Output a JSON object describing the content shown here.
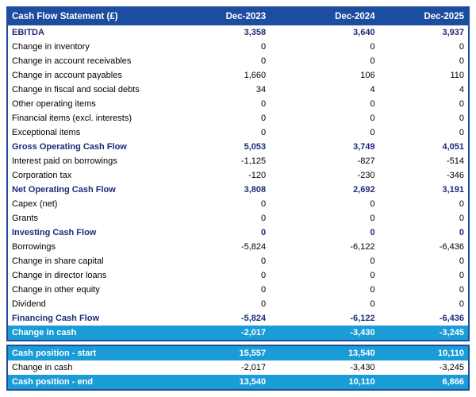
{
  "chart_data": {
    "type": "table",
    "title": "Cash Flow Statement (£)",
    "columns": [
      "Dec-2023",
      "Dec-2024",
      "Dec-2025"
    ],
    "rows": [
      {
        "label": "EBITDA",
        "values": [
          "3,358",
          "3,640",
          "3,937"
        ],
        "style": "section"
      },
      {
        "label": "Change in inventory",
        "values": [
          "0",
          "0",
          "0"
        ],
        "style": "normal"
      },
      {
        "label": "Change in account receivables",
        "values": [
          "0",
          "0",
          "0"
        ],
        "style": "normal"
      },
      {
        "label": "Change in account payables",
        "values": [
          "1,660",
          "106",
          "110"
        ],
        "style": "normal"
      },
      {
        "label": "Change in fiscal and social debts",
        "values": [
          "34",
          "4",
          "4"
        ],
        "style": "normal"
      },
      {
        "label": "Other operating items",
        "values": [
          "0",
          "0",
          "0"
        ],
        "style": "normal"
      },
      {
        "label": "Financial items (excl. interests)",
        "values": [
          "0",
          "0",
          "0"
        ],
        "style": "normal"
      },
      {
        "label": "Exceptional items",
        "values": [
          "0",
          "0",
          "0"
        ],
        "style": "normal"
      },
      {
        "label": "Gross Operating Cash Flow",
        "values": [
          "5,053",
          "3,749",
          "4,051"
        ],
        "style": "section"
      },
      {
        "label": "Interest paid on borrowings",
        "values": [
          "-1,125",
          "-827",
          "-514"
        ],
        "style": "normal"
      },
      {
        "label": "Corporation tax",
        "values": [
          "-120",
          "-230",
          "-346"
        ],
        "style": "normal"
      },
      {
        "label": "Net Operating Cash Flow",
        "values": [
          "3,808",
          "2,692",
          "3,191"
        ],
        "style": "section"
      },
      {
        "label": "Capex (net)",
        "values": [
          "0",
          "0",
          "0"
        ],
        "style": "normal"
      },
      {
        "label": "Grants",
        "values": [
          "0",
          "0",
          "0"
        ],
        "style": "normal"
      },
      {
        "label": "Investing Cash Flow",
        "values": [
          "0",
          "0",
          "0"
        ],
        "style": "section"
      },
      {
        "label": "Borrowings",
        "values": [
          "-5,824",
          "-6,122",
          "-6,436"
        ],
        "style": "normal"
      },
      {
        "label": "Change in share capital",
        "values": [
          "0",
          "0",
          "0"
        ],
        "style": "normal"
      },
      {
        "label": "Change in director loans",
        "values": [
          "0",
          "0",
          "0"
        ],
        "style": "normal"
      },
      {
        "label": "Change in other equity",
        "values": [
          "0",
          "0",
          "0"
        ],
        "style": "normal"
      },
      {
        "label": "Dividend",
        "values": [
          "0",
          "0",
          "0"
        ],
        "style": "normal"
      },
      {
        "label": "Financing Cash Flow",
        "values": [
          "-5,824",
          "-6,122",
          "-6,436"
        ],
        "style": "section"
      },
      {
        "label": "Change in cash",
        "values": [
          "-2,017",
          "-3,430",
          "-3,245"
        ],
        "style": "highlight"
      }
    ],
    "summary_rows": [
      {
        "label": "Cash position - start",
        "values": [
          "15,557",
          "13,540",
          "10,110"
        ],
        "style": "highlight"
      },
      {
        "label": "Change in cash",
        "values": [
          "-2,017",
          "-3,430",
          "-3,245"
        ],
        "style": "normal"
      },
      {
        "label": "Cash position - end",
        "values": [
          "13,540",
          "10,110",
          "6,866"
        ],
        "style": "highlight"
      }
    ]
  },
  "colors": {
    "header_bg": "#1d4d9e",
    "highlight_bg": "#1a9cd7",
    "section_text": "#1f2a7a",
    "border": "#1d4d9e",
    "header_text": "#ffffff",
    "body_text": "#000000",
    "page_bg": "#ffffff"
  }
}
